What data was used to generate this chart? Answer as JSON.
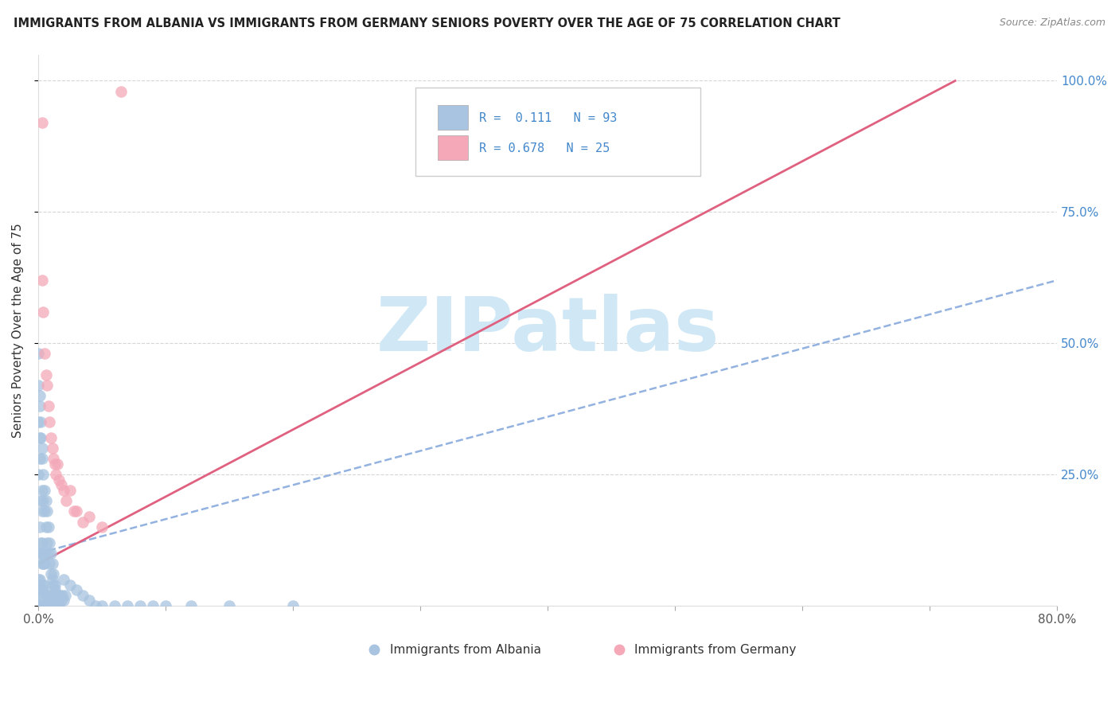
{
  "title": "IMMIGRANTS FROM ALBANIA VS IMMIGRANTS FROM GERMANY SENIORS POVERTY OVER THE AGE OF 75 CORRELATION CHART",
  "source": "Source: ZipAtlas.com",
  "ylabel": "Seniors Poverty Over the Age of 75",
  "albania_R": 0.111,
  "albania_N": 93,
  "germany_R": 0.678,
  "germany_N": 25,
  "albania_color": "#a8c4e0",
  "albania_edge_color": "#6699cc",
  "germany_color": "#f4a8b8",
  "germany_edge_color": "#e07090",
  "watermark_text": "ZIPatlas",
  "watermark_color": "#d0e8f5",
  "xlim": [
    0.0,
    0.8
  ],
  "ylim": [
    0.0,
    1.05
  ],
  "xtick_positions": [
    0.0,
    0.1,
    0.2,
    0.3,
    0.4,
    0.5,
    0.6,
    0.7,
    0.8
  ],
  "xtick_labels": [
    "0.0%",
    "",
    "",
    "",
    "",
    "",
    "",
    "",
    "80.0%"
  ],
  "ytick_positions": [
    0.0,
    0.25,
    0.5,
    0.75,
    1.0
  ],
  "ytick_labels_right": [
    "",
    "25.0%",
    "50.0%",
    "75.0%",
    "100.0%"
  ],
  "grid_color": "#cccccc",
  "albania_line_color": "#88aadd",
  "albania_line_style": "--",
  "germany_line_color": "#e06080",
  "germany_line_style": "-",
  "title_color": "#222222",
  "source_color": "#888888",
  "ylabel_color": "#333333",
  "tick_label_color": "#4488cc",
  "legend_R_color": "#4488cc",
  "legend_N_color": "#4488cc",
  "bottom_legend_color": "#333333",
  "albania_scatter_x": [
    0.0,
    0.0,
    0.0,
    0.001,
    0.001,
    0.001,
    0.002,
    0.002,
    0.003,
    0.003,
    0.004,
    0.004,
    0.005,
    0.005,
    0.006,
    0.007,
    0.008,
    0.009,
    0.01,
    0.011,
    0.012,
    0.013,
    0.014,
    0.015,
    0.016,
    0.017,
    0.018,
    0.019,
    0.02,
    0.021,
    0.001,
    0.001,
    0.002,
    0.002,
    0.003,
    0.003,
    0.004,
    0.004,
    0.005,
    0.005,
    0.0,
    0.0,
    0.001,
    0.001,
    0.002,
    0.003,
    0.003,
    0.004,
    0.005,
    0.006,
    0.007,
    0.008,
    0.009,
    0.01,
    0.011,
    0.012,
    0.013,
    0.014,
    0.015,
    0.016,
    0.0,
    0.0,
    0.001,
    0.001,
    0.002,
    0.002,
    0.003,
    0.003,
    0.004,
    0.005,
    0.006,
    0.007,
    0.008,
    0.009,
    0.01,
    0.011,
    0.012,
    0.013,
    0.02,
    0.025,
    0.03,
    0.035,
    0.04,
    0.045,
    0.05,
    0.06,
    0.07,
    0.08,
    0.09,
    0.1,
    0.12,
    0.15,
    0.2
  ],
  "albania_scatter_y": [
    0.0,
    0.02,
    0.05,
    0.0,
    0.02,
    0.05,
    0.0,
    0.03,
    0.0,
    0.04,
    0.0,
    0.03,
    0.0,
    0.04,
    0.0,
    0.02,
    0.01,
    0.02,
    0.01,
    0.02,
    0.01,
    0.02,
    0.01,
    0.02,
    0.01,
    0.02,
    0.01,
    0.02,
    0.01,
    0.02,
    0.1,
    0.15,
    0.1,
    0.12,
    0.08,
    0.12,
    0.08,
    0.1,
    0.08,
    0.1,
    0.25,
    0.35,
    0.28,
    0.32,
    0.2,
    0.18,
    0.22,
    0.2,
    0.18,
    0.15,
    0.12,
    0.1,
    0.08,
    0.06,
    0.05,
    0.04,
    0.03,
    0.02,
    0.01,
    0.0,
    0.42,
    0.48,
    0.38,
    0.4,
    0.32,
    0.35,
    0.28,
    0.3,
    0.25,
    0.22,
    0.2,
    0.18,
    0.15,
    0.12,
    0.1,
    0.08,
    0.06,
    0.04,
    0.05,
    0.04,
    0.03,
    0.02,
    0.01,
    0.0,
    0.0,
    0.0,
    0.0,
    0.0,
    0.0,
    0.0,
    0.0,
    0.0,
    0.0
  ],
  "germany_scatter_x": [
    0.003,
    0.003,
    0.004,
    0.005,
    0.006,
    0.007,
    0.008,
    0.009,
    0.01,
    0.011,
    0.012,
    0.013,
    0.014,
    0.015,
    0.016,
    0.018,
    0.02,
    0.022,
    0.025,
    0.028,
    0.03,
    0.035,
    0.04,
    0.05,
    0.065
  ],
  "germany_scatter_y": [
    0.92,
    0.62,
    0.56,
    0.48,
    0.44,
    0.42,
    0.38,
    0.35,
    0.32,
    0.3,
    0.28,
    0.27,
    0.25,
    0.27,
    0.24,
    0.23,
    0.22,
    0.2,
    0.22,
    0.18,
    0.18,
    0.16,
    0.17,
    0.15,
    0.98
  ],
  "albania_line_x0": 0.0,
  "albania_line_x1": 0.8,
  "albania_line_y0": 0.1,
  "albania_line_y1": 0.62,
  "germany_line_x0": 0.0,
  "germany_line_x1": 0.72,
  "germany_line_y0": 0.08,
  "germany_line_y1": 1.0
}
